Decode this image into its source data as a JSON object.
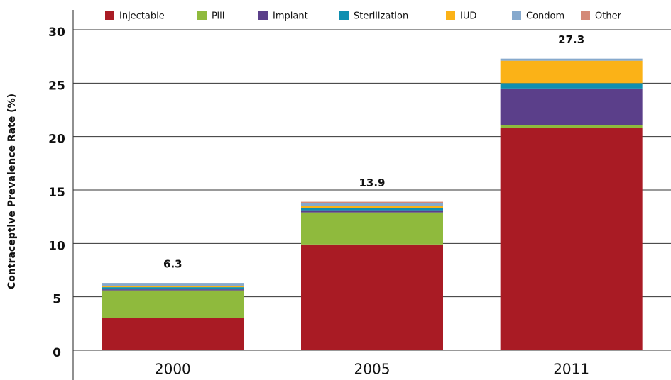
{
  "chart_data": {
    "type": "stacked_bar",
    "y_label": "Contraceptive Prevalence Rate (%)",
    "categories": [
      "2000",
      "2005",
      "2011"
    ],
    "series": [
      {
        "name": "Injectable",
        "color": "#a91b24",
        "values": [
          3.0,
          9.9,
          20.8
        ]
      },
      {
        "name": "Pill",
        "color": "#8fba3d",
        "values": [
          2.6,
          3.0,
          0.3
        ]
      },
      {
        "name": "Implant",
        "color": "#5b3f8a",
        "values": [
          0.1,
          0.2,
          3.4
        ]
      },
      {
        "name": "Sterilization",
        "color": "#0f8fb0",
        "values": [
          0.2,
          0.2,
          0.5
        ]
      },
      {
        "name": "IUD",
        "color": "#fbb217",
        "values": [
          0.1,
          0.2,
          2.1
        ]
      },
      {
        "name": "Condom",
        "color": "#86a9cd",
        "values": [
          0.3,
          0.3,
          0.2
        ]
      },
      {
        "name": "Other",
        "color": "#d48a78",
        "values": [
          0.0,
          0.1,
          0.0
        ]
      }
    ],
    "totals": [
      6.3,
      13.9,
      27.3
    ],
    "ylim": [
      0,
      30
    ],
    "yticks": [
      0,
      5,
      10,
      15,
      20,
      25,
      30
    ],
    "grid": true,
    "legend": "top"
  }
}
